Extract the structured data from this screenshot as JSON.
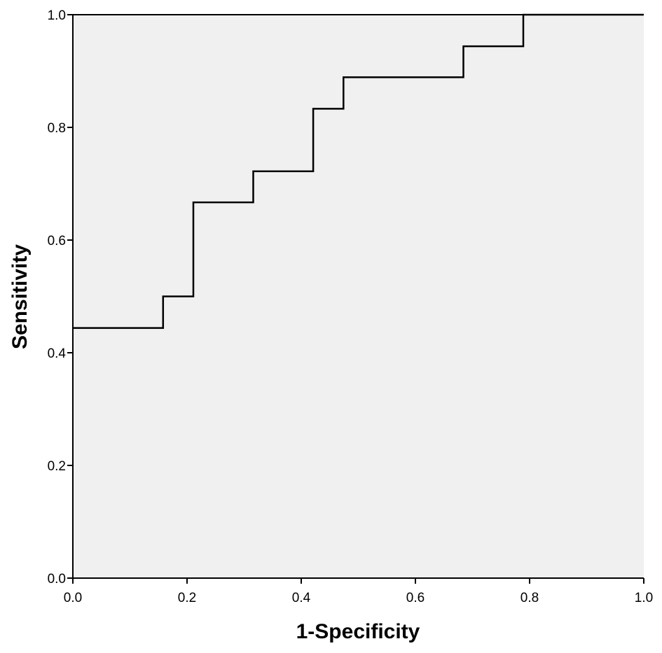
{
  "chart_data": {
    "type": "line",
    "step": true,
    "title": "",
    "xlabel": "1-Specificity",
    "ylabel": "Sensitivity",
    "xlim": [
      0,
      1
    ],
    "ylim": [
      0,
      1
    ],
    "xticks": [
      "0.0",
      "0.2",
      "0.4",
      "0.6",
      "0.8",
      "1.0"
    ],
    "yticks": [
      "0.0",
      "0.2",
      "0.4",
      "0.6",
      "0.8",
      "1.0"
    ],
    "grid": false,
    "legend": "none",
    "background_color": "#f0f0f0",
    "line_color": "#000000",
    "series": [
      {
        "x": [
          0.0,
          0.158,
          0.158,
          0.211,
          0.211,
          0.316,
          0.316,
          0.421,
          0.421,
          0.474,
          0.474,
          0.684,
          0.684,
          0.789,
          0.789,
          1.0
        ],
        "y": [
          0.444,
          0.444,
          0.5,
          0.5,
          0.667,
          0.667,
          0.722,
          0.722,
          0.833,
          0.833,
          0.889,
          0.889,
          0.944,
          0.944,
          1.0,
          1.0
        ]
      }
    ]
  }
}
